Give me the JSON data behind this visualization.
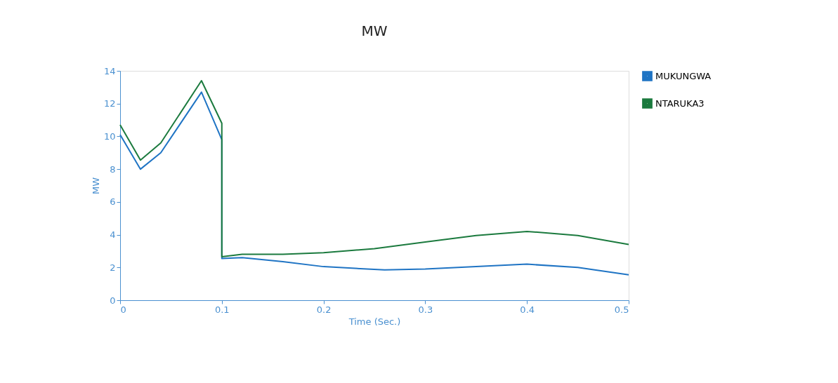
{
  "chart_data": {
    "type": "line",
    "title": "MW",
    "xlabel": "Time (Sec.)",
    "ylabel": "MW",
    "xlim": [
      0,
      0.5
    ],
    "xticks": [
      {
        "value": 0,
        "label": "0"
      },
      0.1,
      0.2,
      0.3,
      0.4,
      0.5
    ],
    "ylim": [
      0,
      14
    ],
    "yticks": [
      0,
      2,
      4,
      6,
      8,
      10,
      12,
      14
    ],
    "grid": false,
    "legend": "right",
    "marker": "none",
    "line_style": "solid",
    "series": [
      {
        "name": "MUKUNGWA",
        "color": "#1f74c4",
        "x": [
          0,
          0.02,
          0.04,
          0.08,
          0.1,
          0.1,
          0.12,
          0.16,
          0.2,
          0.26,
          0.3,
          0.35,
          0.4,
          0.45,
          0.5
        ],
        "values": [
          10.1,
          8.0,
          9.0,
          12.7,
          9.8,
          2.55,
          2.6,
          2.35,
          2.05,
          1.85,
          1.9,
          2.05,
          2.2,
          2.0,
          1.55
        ]
      },
      {
        "name": "NTARUKA3",
        "color": "#1b7a3e",
        "x": [
          0,
          0.02,
          0.04,
          0.08,
          0.1,
          0.1,
          0.12,
          0.16,
          0.2,
          0.25,
          0.3,
          0.35,
          0.4,
          0.45,
          0.5
        ],
        "values": [
          10.7,
          8.55,
          9.6,
          13.4,
          10.8,
          2.65,
          2.8,
          2.8,
          2.9,
          3.15,
          3.55,
          3.95,
          4.2,
          3.95,
          3.4
        ]
      }
    ]
  }
}
